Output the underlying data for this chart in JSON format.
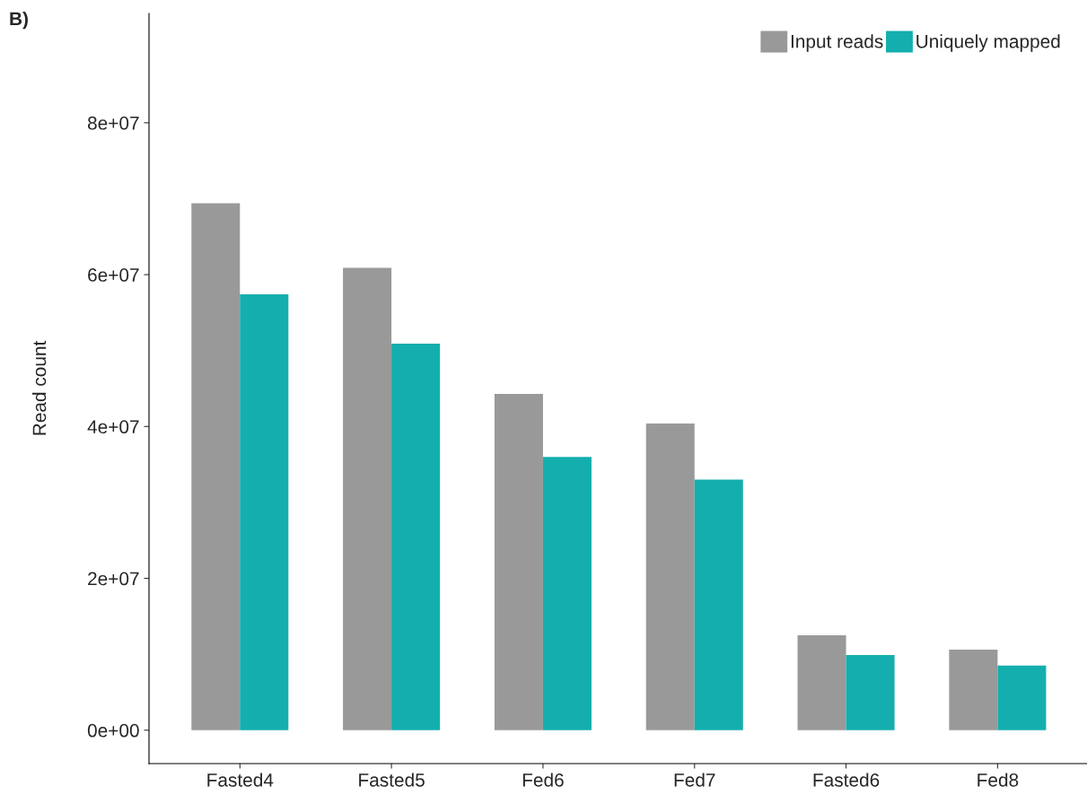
{
  "chart_data": {
    "type": "bar",
    "title": "B)",
    "ylabel": "Read count",
    "categories": [
      "Fasted4",
      "Fasted5",
      "Fed6",
      "Fed7",
      "Fasted6",
      "Fed8"
    ],
    "series": [
      {
        "name": "Input reads",
        "color": "#999999",
        "values": [
          69400000,
          60900000,
          44300000,
          40400000,
          12500000,
          10600000
        ]
      },
      {
        "name": "Uniquely mapped",
        "color": "#14aeae",
        "values": [
          57400000,
          50900000,
          36000000,
          33000000,
          9900000,
          8500000
        ]
      }
    ],
    "ylim": [
      -4400000,
      94400000
    ],
    "yticks": [
      {
        "value": 0,
        "label": "0e+00"
      },
      {
        "value": 20000000,
        "label": "2e+07"
      },
      {
        "value": 40000000,
        "label": "4e+07"
      },
      {
        "value": 60000000,
        "label": "6e+07"
      },
      {
        "value": 80000000,
        "label": "8e+07"
      }
    ],
    "grid": false,
    "legend": "top right"
  }
}
